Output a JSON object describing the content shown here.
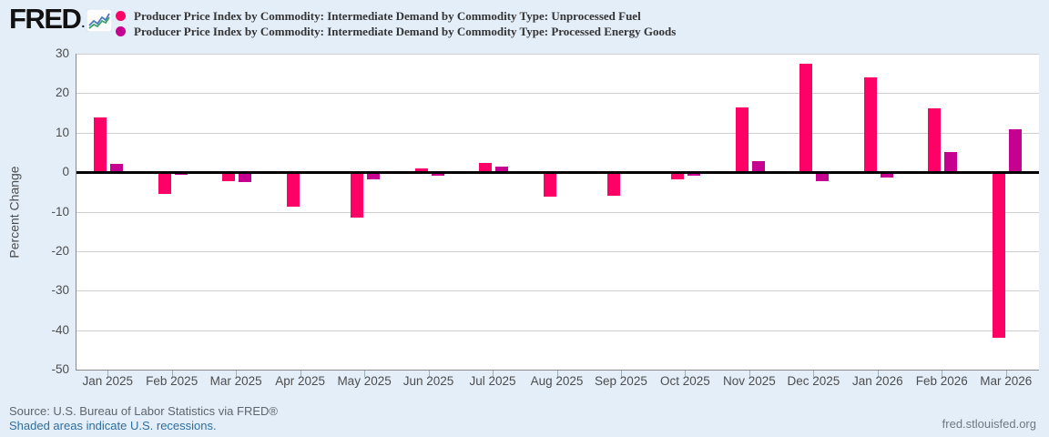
{
  "header": {
    "logo": {
      "text": "FRED",
      "suffix": "."
    },
    "legend": [
      {
        "label": "Producer Price Index by Commodity: Intermediate Demand by Commodity Type: Unprocessed Fuel",
        "color": "#ff0066"
      },
      {
        "label": "Producer Price Index by Commodity: Intermediate Demand by Commodity Type: Processed Energy Goods",
        "color": "#c6008f"
      }
    ]
  },
  "chart_data": {
    "type": "bar",
    "categories": [
      "Jan 2025",
      "Feb 2025",
      "Mar 2025",
      "Apr 2025",
      "May 2025",
      "Jun 2025",
      "Jul 2025",
      "Aug 2025",
      "Sep 2025",
      "Oct 2025",
      "Nov 2025",
      "Dec 2025",
      "Jan 2026",
      "Feb 2026",
      "Mar 2026"
    ],
    "series": [
      {
        "name": "Producer Price Index by Commodity: Intermediate Demand by Commodity Type: Unprocessed Fuel",
        "color": "#ff0066",
        "values": [
          13.9,
          -5.6,
          -2.2,
          -8.7,
          -11.6,
          1.0,
          2.4,
          -6.3,
          -6.0,
          -1.9,
          16.4,
          27.4,
          24.1,
          16.2,
          -42.0
        ]
      },
      {
        "name": "Producer Price Index by Commodity: Intermediate Demand by Commodity Type: Processed Energy Goods",
        "color": "#c6008f",
        "values": [
          2.0,
          -0.7,
          -2.6,
          0.0,
          -1.9,
          -1.0,
          1.4,
          0.0,
          0.0,
          -0.9,
          2.9,
          -2.3,
          -1.3,
          5.0,
          10.9
        ]
      }
    ],
    "title": "",
    "xlabel": "",
    "ylabel": "Percent Change",
    "ylim": [
      -50,
      30
    ],
    "ytick_step": 10,
    "grid": true,
    "zero_line": true,
    "legend_position": "top-left"
  },
  "footer": {
    "source": "Source: U.S. Bureau of Labor Statistics via FRED®",
    "recessions_note": "Shaded areas indicate U.S. recessions.",
    "site": "fred.stlouisfed.org"
  },
  "colors": {
    "page_background": "#e4eef9",
    "plot_background": "#ffffff",
    "gridline": "#cfcfcf",
    "zero_line": "#000000",
    "series_1": "#ff0066",
    "series_2": "#c6008f",
    "link": "#2e6e9e"
  }
}
